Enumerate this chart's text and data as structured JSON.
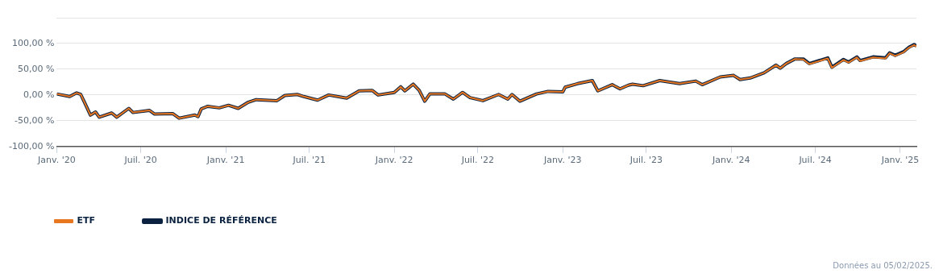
{
  "chart_data": {
    "type": "line",
    "x": [
      "2020-01-01",
      "2020-01-29",
      "2020-02-13",
      "2020-02-22",
      "2020-03-01",
      "2020-03-14",
      "2020-03-25",
      "2020-04-02",
      "2020-04-29",
      "2020-05-10",
      "2020-06-05",
      "2020-06-14",
      "2020-07-20",
      "2020-07-31",
      "2020-09-08",
      "2020-09-22",
      "2020-10-26",
      "2020-11-02",
      "2020-11-09",
      "2020-11-23",
      "2020-12-18",
      "2021-01-07",
      "2021-01-28",
      "2021-02-19",
      "2021-03-08",
      "2021-04-22",
      "2021-05-09",
      "2021-06-05",
      "2021-06-19",
      "2021-07-19",
      "2021-08-12",
      "2021-09-20",
      "2021-10-17",
      "2021-11-14",
      "2021-11-27",
      "2022-01-01",
      "2022-01-15",
      "2022-01-24",
      "2022-02-11",
      "2022-02-24",
      "2022-03-08",
      "2022-03-19",
      "2022-04-21",
      "2022-05-09",
      "2022-05-29",
      "2022-06-14",
      "2022-07-12",
      "2022-08-15",
      "2022-09-04",
      "2022-09-13",
      "2022-09-30",
      "2022-11-05",
      "2022-11-30",
      "2023-01-01",
      "2023-01-06",
      "2023-02-02",
      "2023-03-06",
      "2023-03-18",
      "2023-04-18",
      "2023-05-05",
      "2023-05-23",
      "2023-06-01",
      "2023-06-24",
      "2023-07-30",
      "2023-09-11",
      "2023-10-16",
      "2023-10-30",
      "2023-12-08",
      "2024-01-06",
      "2024-01-20",
      "2024-02-11",
      "2024-03-12",
      "2024-04-07",
      "2024-04-16",
      "2024-04-29",
      "2024-05-18",
      "2024-06-05",
      "2024-06-18",
      "2024-07-28",
      "2024-08-06",
      "2024-08-31",
      "2024-09-11",
      "2024-09-29",
      "2024-10-06",
      "2024-11-03",
      "2024-11-30",
      "2024-12-09",
      "2024-12-21",
      "2025-01-08",
      "2025-01-20",
      "2025-01-31",
      "2025-02-05"
    ],
    "series": [
      {
        "name": "ETF",
        "color": "#e87722",
        "values": [
          2,
          -3,
          4,
          1,
          -14,
          -39,
          -33,
          -43,
          -35,
          -43,
          -26,
          -34,
          -30,
          -37,
          -36,
          -45,
          -39,
          -42,
          -27,
          -22,
          -25,
          -20,
          -26,
          -14,
          -9,
          -11,
          -1,
          1,
          -3,
          -10,
          0,
          -6,
          8,
          9,
          0,
          5,
          16,
          8,
          21,
          9,
          -12,
          2,
          2,
          -8,
          5,
          -5,
          -11,
          1,
          -8,
          1,
          -12,
          2,
          7,
          6,
          15,
          22,
          28,
          8,
          20,
          12,
          19,
          21,
          18,
          28,
          22,
          27,
          20,
          35,
          38,
          30,
          33,
          43,
          58,
          52,
          61,
          70,
          69,
          60,
          71,
          53,
          68,
          63,
          73,
          66,
          73,
          71,
          81,
          76,
          83,
          92,
          97,
          94
        ]
      },
      {
        "name": "INDICE DE RÉFÉRENCE",
        "color": "#0a2240",
        "values": [
          2,
          -3,
          4,
          1,
          -14,
          -39,
          -33,
          -43,
          -35,
          -43,
          -26,
          -34,
          -30,
          -37,
          -36,
          -45,
          -39,
          -42,
          -27,
          -22,
          -25,
          -20,
          -26,
          -14,
          -9,
          -11,
          -1,
          1,
          -3,
          -10,
          0,
          -6,
          8,
          9,
          0,
          5,
          16,
          8,
          21,
          9,
          -12,
          2,
          2,
          -8,
          5,
          -5,
          -11,
          1,
          -8,
          1,
          -12,
          2,
          7,
          6,
          15,
          22,
          28,
          8,
          20,
          12,
          19,
          21,
          18,
          28,
          22,
          27,
          20,
          35,
          38,
          30,
          33,
          43,
          58,
          52,
          61,
          70,
          70,
          61,
          72,
          54,
          69,
          64,
          74,
          67,
          74,
          72,
          82,
          77,
          84,
          93,
          98,
          95
        ]
      }
    ],
    "xlim": [
      "2020-01-01",
      "2025-02-05"
    ],
    "xticks": [
      {
        "value": "2020-01",
        "label": "Janv. '20"
      },
      {
        "value": "2020-07",
        "label": "Juil. '20"
      },
      {
        "value": "2021-01",
        "label": "Janv. '21"
      },
      {
        "value": "2021-07",
        "label": "Juil. '21"
      },
      {
        "value": "2022-01",
        "label": "Janv. '22"
      },
      {
        "value": "2022-07",
        "label": "Juil. '22"
      },
      {
        "value": "2023-01",
        "label": "Janv. '23"
      },
      {
        "value": "2023-07",
        "label": "Juil. '23"
      },
      {
        "value": "2024-01",
        "label": "Janv. '24"
      },
      {
        "value": "2024-07",
        "label": "Juil. '24"
      },
      {
        "value": "2025-01",
        "label": "Janv. '25"
      }
    ],
    "ylim": [
      -100,
      150
    ],
    "yticks": [
      {
        "value": -100,
        "label": "-100,00 %"
      },
      {
        "value": -50,
        "label": "-50,00 %"
      },
      {
        "value": 0,
        "label": "0,00 %"
      },
      {
        "value": 50,
        "label": "50,00 %"
      },
      {
        "value": 100,
        "label": "100,00 %"
      },
      {
        "value": 150,
        "label": null
      }
    ],
    "grid": "y",
    "legend": "bottom left",
    "marker": "none",
    "line_style": "solid",
    "annotations": [
      "Données au 05/02/2025."
    ]
  }
}
